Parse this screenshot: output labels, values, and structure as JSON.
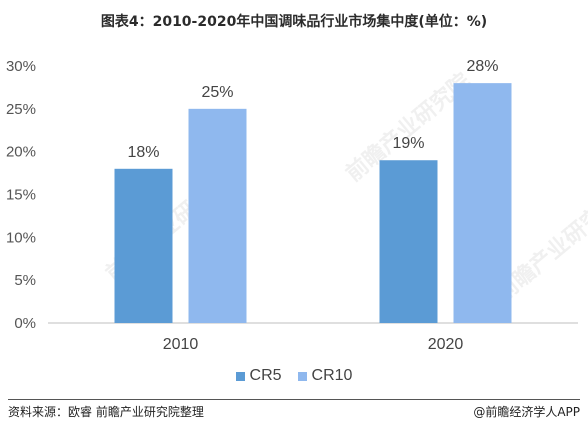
{
  "title": "图表4：2010-2020年中国调味品行业市场集中度(单位：%)",
  "source": "资料来源：欧睿 前瞻产业研究院整理",
  "brand": "@前瞻经济学人APP",
  "watermark": "前瞻产业研究院",
  "chart_data": {
    "type": "bar",
    "categories": [
      "2010",
      "2020"
    ],
    "series": [
      {
        "name": "CR5",
        "values": [
          18,
          19
        ],
        "color": "#5b9bd5"
      },
      {
        "name": "CR10",
        "values": [
          25,
          28
        ],
        "color": "#8fb8ee"
      }
    ],
    "data_labels": [
      [
        "18%",
        "19%"
      ],
      [
        "25%",
        "28%"
      ]
    ],
    "ylim": [
      0,
      30
    ],
    "yticks": [
      0,
      5,
      10,
      15,
      20,
      25,
      30
    ],
    "ytick_labels": [
      "0%",
      "5%",
      "10%",
      "15%",
      "20%",
      "25%",
      "30%"
    ],
    "grid": false,
    "legend_position": "bottom"
  }
}
